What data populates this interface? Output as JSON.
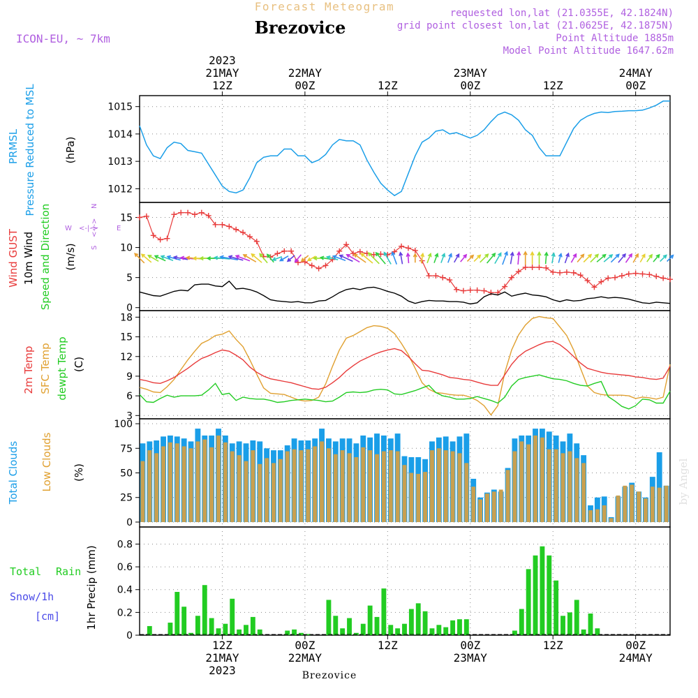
{
  "header": {
    "title": "Forecast Meteogram",
    "location": "Brezovice",
    "model": "ICON-EU, ~ 7km",
    "requested": "requested lon,lat (21.0355E, 42.1824N)",
    "gridpoint": "grid point closest lon,lat (21.0625E, 42.1875N)",
    "point_alt": "Point Altitude 1885m",
    "model_alt": "Model Point Altitude 1647.62m",
    "credit": "by Angel",
    "footer": "Brezovice"
  },
  "colors": {
    "pressure": "#1a9ee8",
    "gust": "#e83a3a",
    "wind": "#000000",
    "t2m": "#e83a3a",
    "sfc": "#e0a030",
    "dewpt": "#22cc22",
    "total_clouds": "#1a9ee8",
    "low_clouds": "#c8a050",
    "rain": "#22cc22",
    "snow": "#4a4ae8",
    "header_purple": "#b060e0",
    "title_orange": "#e8c080"
  },
  "time_axis": {
    "top": [
      {
        "t": 12,
        "l1": "2023",
        "l2": "21MAY",
        "l3": "12Z"
      },
      {
        "t": 24,
        "l1": "",
        "l2": "22MAY",
        "l3": "00Z"
      },
      {
        "t": 36,
        "l1": "",
        "l2": "",
        "l3": "12Z"
      },
      {
        "t": 48,
        "l1": "",
        "l2": "23MAY",
        "l3": "00Z"
      },
      {
        "t": 60,
        "l1": "",
        "l2": "",
        "l3": "12Z"
      },
      {
        "t": 72,
        "l1": "",
        "l2": "24MAY",
        "l3": "00Z"
      }
    ],
    "bottom": [
      {
        "t": 12,
        "l1": "12Z",
        "l2": "21MAY",
        "l3": "2023"
      },
      {
        "t": 24,
        "l1": "00Z",
        "l2": "22MAY",
        "l3": ""
      },
      {
        "t": 36,
        "l1": "12Z",
        "l2": "",
        "l3": ""
      },
      {
        "t": 48,
        "l1": "00Z",
        "l2": "23MAY",
        "l3": ""
      },
      {
        "t": 60,
        "l1": "12Z",
        "l2": "",
        "l3": ""
      },
      {
        "t": 72,
        "l1": "00Z",
        "l2": "24MAY",
        "l3": ""
      }
    ],
    "t_start": 0,
    "t_end": 77
  },
  "chart_data": [
    {
      "type": "line",
      "name": "pressure",
      "ylabel_lines": [
        "PRMSL",
        "Pressure Reduced to MSL"
      ],
      "units": "(hPa)",
      "ylim": [
        1011.5,
        1015.4
      ],
      "yticks": [
        1012,
        1013,
        1014,
        1015
      ],
      "x": [
        0,
        1,
        2,
        3,
        4,
        5,
        6,
        7,
        8,
        9,
        10,
        11,
        12,
        13,
        14,
        15,
        16,
        17,
        18,
        19,
        20,
        21,
        22,
        23,
        24,
        25,
        26,
        27,
        28,
        29,
        30,
        31,
        32,
        33,
        34,
        35,
        36,
        37,
        38,
        39,
        40,
        41,
        42,
        43,
        44,
        45,
        46,
        47,
        48,
        49,
        50,
        51,
        52,
        53,
        54,
        55,
        56,
        57,
        58,
        59,
        60,
        61,
        62,
        63,
        64,
        65,
        66,
        67,
        68,
        69,
        70,
        71,
        72,
        73,
        74,
        75,
        76,
        77
      ],
      "values": [
        1014.3,
        1013.6,
        1013.2,
        1013.1,
        1013.5,
        1013.7,
        1013.65,
        1013.4,
        1013.35,
        1013.3,
        1012.9,
        1012.5,
        1012.1,
        1011.9,
        1011.85,
        1011.95,
        1012.4,
        1012.95,
        1013.15,
        1013.2,
        1013.2,
        1013.45,
        1013.45,
        1013.2,
        1013.2,
        1012.95,
        1013.05,
        1013.25,
        1013.6,
        1013.8,
        1013.75,
        1013.75,
        1013.6,
        1013.05,
        1012.6,
        1012.2,
        1011.95,
        1011.75,
        1011.9,
        1012.55,
        1013.2,
        1013.7,
        1013.85,
        1014.1,
        1014.15,
        1014.0,
        1014.05,
        1013.95,
        1013.85,
        1013.95,
        1014.15,
        1014.45,
        1014.7,
        1014.8,
        1014.7,
        1014.5,
        1014.15,
        1013.95,
        1013.5,
        1013.2,
        1013.2,
        1013.2,
        1013.7,
        1014.2,
        1014.5,
        1014.65,
        1014.75,
        1014.8,
        1014.78,
        1014.82,
        1014.83,
        1014.85,
        1014.85,
        1014.87,
        1014.95,
        1015.05,
        1015.2,
        1015.2
      ]
    },
    {
      "type": "line",
      "name": "wind",
      "ylabel_lines": [
        "Wind GUST",
        "10m Wind",
        "Speed and Direction"
      ],
      "units": "(m/s)",
      "compass": {
        "w": "W",
        "e": "E",
        "n": "N",
        "s": "S"
      },
      "ylim": [
        -0.5,
        17.5
      ],
      "yticks": [
        0,
        5,
        10,
        15
      ],
      "x": [
        0,
        1,
        2,
        3,
        4,
        5,
        6,
        7,
        8,
        9,
        10,
        11,
        12,
        13,
        14,
        15,
        16,
        17,
        18,
        19,
        20,
        21,
        22,
        23,
        24,
        25,
        26,
        27,
        28,
        29,
        30,
        31,
        32,
        33,
        34,
        35,
        36,
        37,
        38,
        39,
        40,
        41,
        42,
        43,
        44,
        45,
        46,
        47,
        48,
        49,
        50,
        51,
        52,
        53,
        54,
        55,
        56,
        57,
        58,
        59,
        60,
        61,
        62,
        63,
        64,
        65,
        66,
        67,
        68,
        69,
        70,
        71,
        72,
        73,
        74,
        75,
        76,
        77
      ],
      "gust": [
        15.0,
        15.2,
        12.0,
        11.3,
        11.5,
        15.5,
        15.8,
        15.8,
        15.5,
        15.8,
        15.3,
        13.8,
        13.8,
        13.5,
        13.0,
        12.5,
        11.8,
        11.0,
        8.5,
        8.4,
        9.0,
        9.4,
        9.4,
        7.5,
        7.6,
        7.0,
        6.5,
        7.0,
        8.0,
        9.4,
        10.5,
        9.0,
        9.3,
        9.0,
        8.8,
        8.9,
        8.8,
        9.3,
        10.2,
        9.9,
        9.5,
        7.8,
        5.3,
        5.3,
        5.0,
        4.6,
        3.0,
        2.8,
        2.9,
        2.9,
        2.8,
        2.5,
        2.5,
        3.5,
        5.0,
        6.0,
        6.7,
        6.7,
        6.7,
        6.6,
        5.9,
        5.8,
        5.9,
        5.8,
        5.4,
        4.5,
        3.4,
        4.3,
        4.9,
        5.0,
        5.3,
        5.6,
        5.7,
        5.6,
        5.5,
        5.2,
        4.9,
        4.7
      ],
      "wind10": [
        2.6,
        2.3,
        2.0,
        1.9,
        2.3,
        2.7,
        2.9,
        2.8,
        3.8,
        3.9,
        3.9,
        3.6,
        3.5,
        4.4,
        3.1,
        3.2,
        3.0,
        2.6,
        2.0,
        1.3,
        1.1,
        1.0,
        0.9,
        1.0,
        0.8,
        0.8,
        1.1,
        1.2,
        1.8,
        2.5,
        3.0,
        3.2,
        3.0,
        3.3,
        3.4,
        3.1,
        2.7,
        2.4,
        1.9,
        1.1,
        0.7,
        1.0,
        1.2,
        1.1,
        1.1,
        1.0,
        1.0,
        0.9,
        0.6,
        0.8,
        1.8,
        2.3,
        2.1,
        2.6,
        1.9,
        2.2,
        2.4,
        2.1,
        2.0,
        1.8,
        1.3,
        1.0,
        1.3,
        1.1,
        1.2,
        1.5,
        1.6,
        1.8,
        1.6,
        1.7,
        1.6,
        1.4,
        1.1,
        0.8,
        0.7,
        0.9,
        0.8,
        0.7
      ],
      "arrow_dirs": [
        135,
        140,
        150,
        155,
        160,
        165,
        170,
        175,
        175,
        180,
        180,
        180,
        175,
        170,
        165,
        160,
        150,
        140,
        130,
        130,
        200,
        210,
        220,
        230,
        220,
        210,
        180,
        170,
        165,
        160,
        155,
        150,
        145,
        140,
        135,
        130,
        120,
        110,
        100,
        95,
        90,
        80,
        70,
        70,
        70,
        70,
        60,
        50,
        45,
        45,
        45,
        50,
        60,
        70,
        80,
        85,
        90,
        90,
        90,
        85,
        80,
        75,
        70,
        60,
        50,
        45,
        45,
        40,
        40,
        45,
        50,
        55,
        60,
        60,
        55,
        50,
        45,
        45
      ]
    },
    {
      "type": "line",
      "name": "temperature",
      "ylabel_lines": [
        "2m Temp",
        "SFC Temp",
        "dewpt Temp"
      ],
      "units": "(C)",
      "ylim": [
        2.5,
        19.0
      ],
      "yticks": [
        3,
        6,
        9,
        12,
        15,
        18
      ],
      "x": [
        0,
        1,
        2,
        3,
        4,
        5,
        6,
        7,
        8,
        9,
        10,
        11,
        12,
        13,
        14,
        15,
        16,
        17,
        18,
        19,
        20,
        21,
        22,
        23,
        24,
        25,
        26,
        27,
        28,
        29,
        30,
        31,
        32,
        33,
        34,
        35,
        36,
        37,
        38,
        39,
        40,
        41,
        42,
        43,
        44,
        45,
        46,
        47,
        48,
        49,
        50,
        51,
        52,
        53,
        54,
        55,
        56,
        57,
        58,
        59,
        60,
        61,
        62,
        63,
        64,
        65,
        66,
        67,
        68,
        69,
        70,
        71,
        72,
        73,
        74,
        75,
        76,
        77
      ],
      "t2m": [
        8.5,
        8.3,
        8.0,
        7.9,
        8.3,
        8.8,
        9.5,
        10.2,
        11.0,
        11.7,
        12.1,
        12.6,
        13.0,
        12.8,
        12.2,
        11.5,
        10.4,
        9.6,
        9.0,
        8.6,
        8.4,
        8.2,
        8.0,
        7.7,
        7.4,
        7.1,
        7.0,
        7.3,
        8.0,
        8.8,
        9.8,
        10.6,
        11.3,
        11.8,
        12.3,
        12.7,
        13.0,
        13.2,
        12.9,
        12.0,
        10.9,
        9.9,
        9.8,
        9.5,
        9.2,
        8.8,
        8.7,
        8.5,
        8.4,
        8.1,
        7.8,
        7.6,
        7.6,
        9.2,
        10.8,
        12.0,
        12.8,
        13.3,
        13.8,
        14.2,
        14.3,
        13.8,
        13.0,
        12.0,
        11.0,
        10.2,
        9.9,
        9.6,
        9.4,
        9.3,
        9.2,
        9.1,
        8.9,
        8.8,
        8.6,
        8.5,
        8.7,
        10.5
      ],
      "sfc": [
        7.3,
        7.0,
        6.6,
        6.5,
        7.4,
        8.5,
        10.0,
        11.5,
        12.8,
        14.0,
        14.5,
        15.2,
        15.4,
        15.9,
        14.6,
        13.5,
        11.5,
        9.3,
        7.2,
        6.4,
        6.3,
        6.2,
        5.8,
        5.4,
        5.2,
        5.3,
        5.8,
        7.8,
        10.5,
        13.0,
        14.8,
        15.2,
        15.8,
        16.4,
        16.7,
        16.6,
        16.3,
        15.5,
        14.0,
        12.3,
        10.2,
        8.0,
        7.0,
        6.5,
        6.4,
        6.2,
        6.1,
        6.1,
        5.8,
        5.3,
        4.5,
        3.1,
        4.5,
        9.5,
        13.0,
        15.3,
        16.8,
        17.8,
        18.1,
        17.9,
        17.8,
        16.5,
        15.2,
        13.0,
        10.2,
        7.5,
        6.5,
        6.2,
        6.1,
        6.1,
        6.1,
        6.0,
        5.6,
        5.8,
        5.7,
        5.5,
        5.8,
        10.8
      ],
      "dewpt": [
        6.2,
        5.1,
        5.0,
        5.6,
        6.1,
        5.8,
        6.0,
        6.0,
        6.0,
        6.1,
        6.9,
        7.9,
        6.2,
        6.4,
        5.3,
        5.8,
        5.6,
        5.5,
        5.5,
        5.3,
        5.0,
        5.1,
        5.3,
        5.4,
        5.5,
        5.4,
        5.3,
        5.1,
        5.2,
        5.8,
        6.5,
        6.6,
        6.5,
        6.6,
        6.9,
        7.0,
        6.9,
        6.3,
        6.2,
        6.5,
        6.8,
        7.2,
        7.6,
        6.5,
        6.0,
        5.8,
        5.5,
        5.5,
        5.6,
        5.9,
        5.6,
        5.3,
        4.9,
        5.8,
        7.5,
        8.5,
        8.8,
        9.0,
        9.2,
        8.9,
        8.6,
        8.5,
        8.3,
        7.9,
        7.6,
        7.5,
        7.9,
        8.2,
        5.9,
        5.2,
        4.4,
        4.0,
        4.5,
        5.5,
        5.4,
        4.9,
        4.9,
        6.7
      ]
    },
    {
      "type": "bar",
      "name": "clouds",
      "ylabel_lines": [
        "Total Clouds",
        "Low Clouds"
      ],
      "units": "(%)",
      "ylim": [
        -5,
        105
      ],
      "yticks": [
        0,
        25,
        50,
        75,
        100
      ],
      "x": [
        0,
        1,
        2,
        3,
        4,
        5,
        6,
        7,
        8,
        9,
        10,
        11,
        12,
        13,
        14,
        15,
        16,
        17,
        18,
        19,
        20,
        21,
        22,
        23,
        24,
        25,
        26,
        27,
        28,
        29,
        30,
        31,
        32,
        33,
        34,
        35,
        36,
        37,
        38,
        39,
        40,
        41,
        42,
        43,
        44,
        45,
        46,
        47,
        48,
        49,
        50,
        51,
        52,
        53,
        54,
        55,
        56,
        57,
        58,
        59,
        60,
        61,
        62,
        63,
        64,
        65,
        66,
        67,
        68,
        69,
        70,
        71,
        72,
        73,
        74,
        75,
        76
      ],
      "total": [
        80,
        82,
        83,
        87,
        88,
        87,
        85,
        82,
        95,
        88,
        88,
        95,
        88,
        80,
        82,
        80,
        83,
        82,
        75,
        73,
        73,
        78,
        85,
        83,
        83,
        85,
        95,
        85,
        82,
        85,
        85,
        80,
        88,
        86,
        90,
        88,
        85,
        90,
        67,
        66,
        66,
        64,
        82,
        86,
        87,
        82,
        87,
        90,
        44,
        25,
        30,
        33,
        31,
        55,
        85,
        88,
        88,
        95,
        95,
        92,
        88,
        82,
        90,
        80,
        68,
        17,
        25,
        26,
        5,
        26,
        36,
        40,
        31,
        25,
        46,
        71,
        37
      ],
      "low": [
        62,
        73,
        70,
        77,
        81,
        80,
        77,
        75,
        82,
        84,
        76,
        88,
        81,
        72,
        68,
        62,
        73,
        59,
        65,
        60,
        64,
        72,
        74,
        73,
        74,
        77,
        82,
        75,
        69,
        73,
        70,
        66,
        76,
        73,
        69,
        72,
        73,
        72,
        58,
        50,
        49,
        51,
        73,
        75,
        73,
        72,
        70,
        60,
        36,
        23,
        29,
        31,
        33,
        53,
        72,
        82,
        79,
        88,
        86,
        74,
        74,
        70,
        72,
        65,
        60,
        12,
        13,
        17,
        4,
        27,
        37,
        38,
        31,
        24,
        36,
        35,
        37
      ]
    },
    {
      "type": "bar",
      "name": "precip",
      "ylabel_lines": [
        "Total",
        "Rain",
        "Snow/1h",
        "[cm]"
      ],
      "units": "1hr Precip (mm)",
      "ylim": [
        0,
        0.95
      ],
      "yticks": [
        0,
        0.2,
        0.4,
        0.6,
        0.8
      ],
      "ytick_labels": [
        "0",
        "0.2",
        "0.4",
        "0.6",
        "0.8"
      ],
      "x": [
        1,
        4,
        5,
        6,
        7,
        8,
        9,
        10,
        11,
        12,
        13,
        14,
        15,
        16,
        17,
        21,
        22,
        23,
        24,
        27,
        28,
        29,
        30,
        31,
        32,
        33,
        34,
        35,
        36,
        37,
        38,
        39,
        40,
        41,
        42,
        43,
        44,
        45,
        46,
        47,
        54,
        55,
        56,
        57,
        58,
        59,
        60,
        61,
        62,
        63,
        64,
        65,
        66
      ],
      "values": [
        0.08,
        0.11,
        0.38,
        0.25,
        0.02,
        0.17,
        0.44,
        0.15,
        0.06,
        0.1,
        0.32,
        0.05,
        0.09,
        0.16,
        0.05,
        0.04,
        0.05,
        0.02,
        0.01,
        0.31,
        0.17,
        0.06,
        0.15,
        0.02,
        0.1,
        0.26,
        0.16,
        0.41,
        0.09,
        0.06,
        0.1,
        0.23,
        0.28,
        0.21,
        0.06,
        0.09,
        0.07,
        0.13,
        0.14,
        0.14,
        0.04,
        0.23,
        0.58,
        0.7,
        0.78,
        0.7,
        0.48,
        0.17,
        0.2,
        0.31,
        0.05,
        0.19,
        0.06
      ]
    }
  ]
}
